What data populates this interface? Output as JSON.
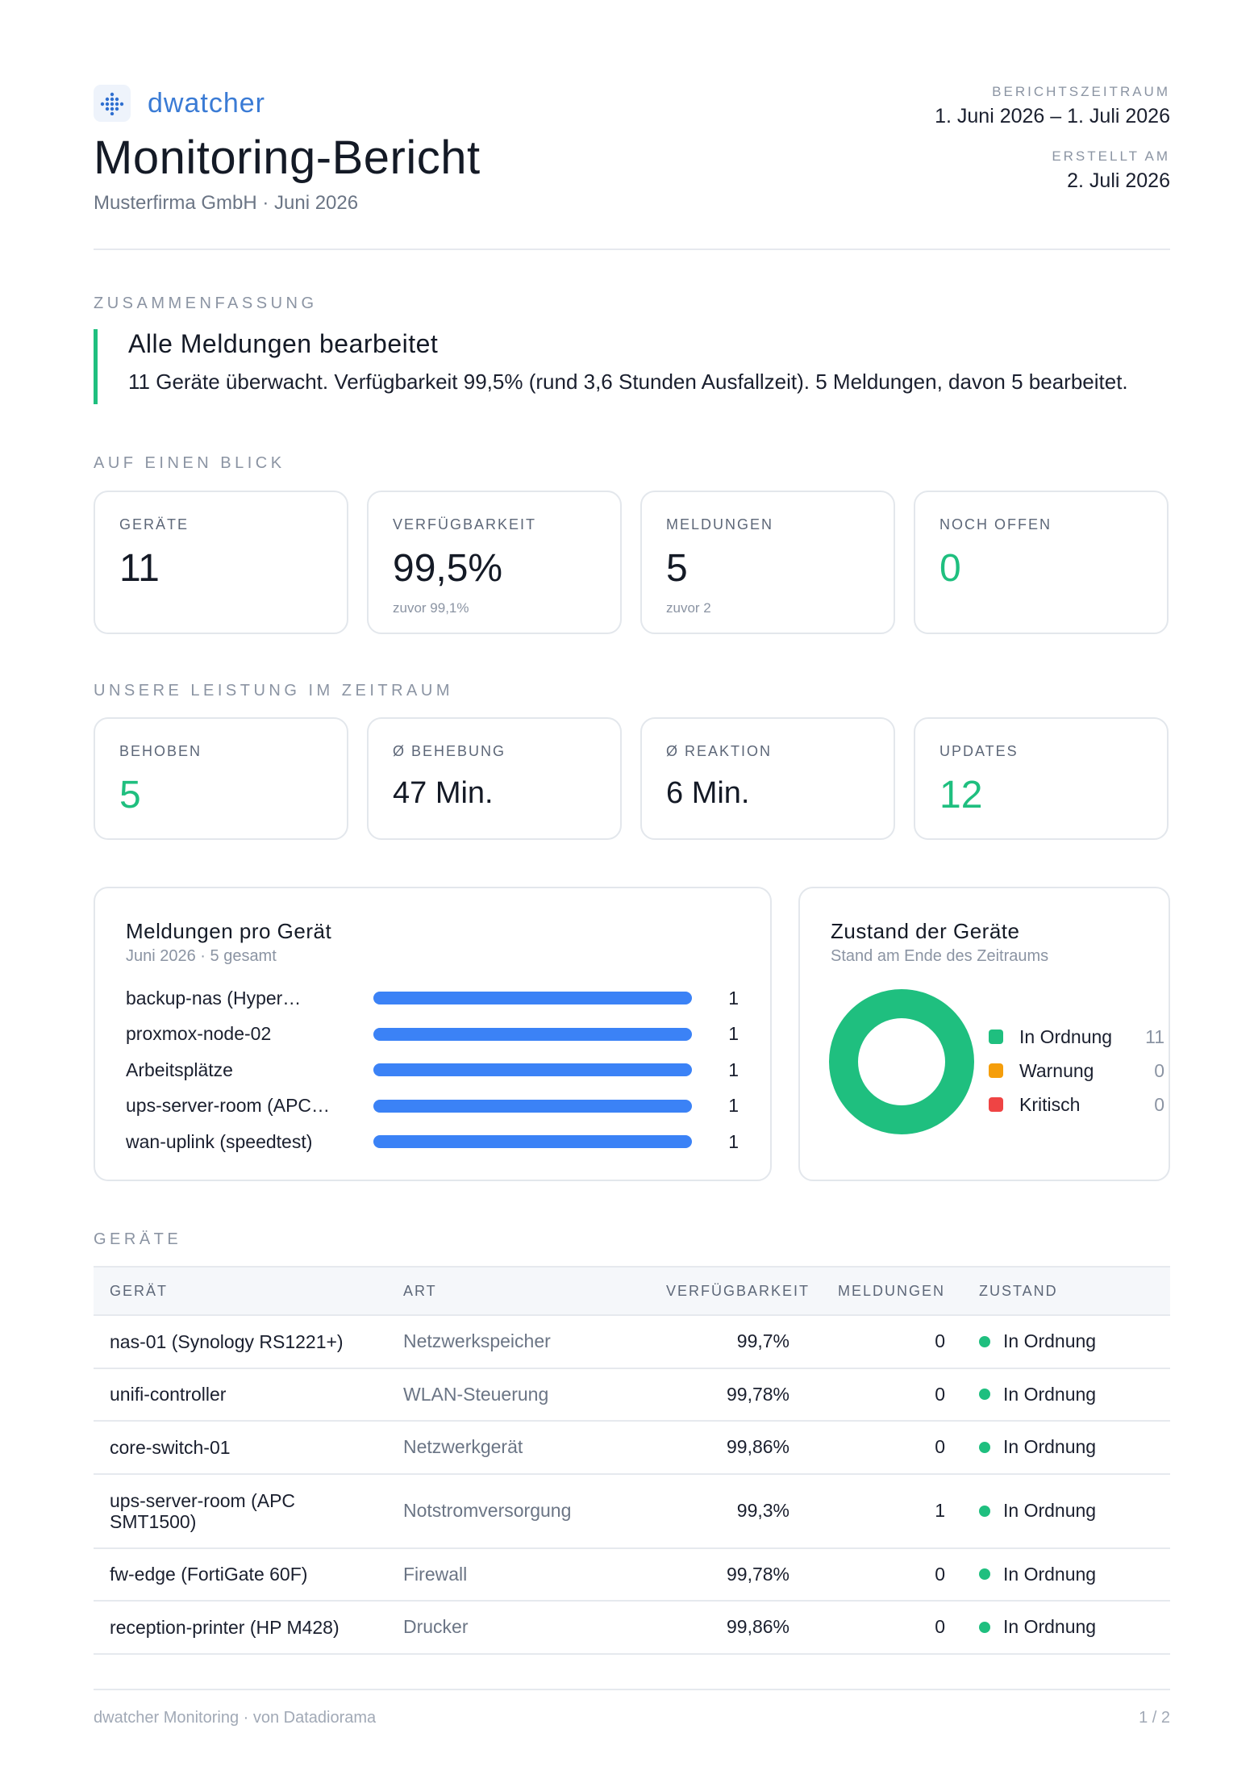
{
  "brand": {
    "name": "dwatcher",
    "icon": "dots-grid-icon"
  },
  "title": "Monitoring-Bericht",
  "subtitle": "Musterfirma GmbH · Juni 2026",
  "meta": {
    "period_label": "BERICHTSZEITRAUM",
    "period_value": "1. Juni 2026 – 1. Juli 2026",
    "created_label": "ERSTELLT AM",
    "created_value": "2. Juli 2026"
  },
  "summary": {
    "section_label": "ZUSAMMENFASSUNG",
    "title": "Alle Meldungen bearbeitet",
    "text": "11 Geräte überwacht. Verfügbarkeit 99,5% (rund 3,6 Stunden Ausfallzeit). 5 Meldungen, davon 5 bearbeitet.",
    "accent": "#1fbf7f"
  },
  "glance": {
    "section_label": "AUF EINEN BLICK",
    "cards": [
      {
        "label": "GERÄTE",
        "value": "11",
        "note": ""
      },
      {
        "label": "VERFÜGBARKEIT",
        "value": "99,5%",
        "note": "zuvor 99,1%"
      },
      {
        "label": "MELDUNGEN",
        "value": "5",
        "note": "zuvor 2"
      },
      {
        "label": "NOCH OFFEN",
        "value": "0",
        "note": ""
      }
    ]
  },
  "performance": {
    "section_label": "UNSERE LEISTUNG IM ZEITRAUM",
    "cards": [
      {
        "label": "BEHOBEN",
        "value": "5"
      },
      {
        "label": "Ø BEHEBUNG",
        "value": "47 Min."
      },
      {
        "label": "Ø REAKTION",
        "value": "6 Min."
      },
      {
        "label": "UPDATES",
        "value": "12"
      }
    ]
  },
  "alerts_chart": {
    "title": "Meldungen pro Gerät",
    "subtitle": "Juni 2026 · 5 gesamt"
  },
  "status_chart": {
    "title": "Zustand der Geräte",
    "subtitle": "Stand am Ende des Zeitraums"
  },
  "chart_data": [
    {
      "type": "bar",
      "orientation": "horizontal",
      "title": "Meldungen pro Gerät",
      "categories": [
        "backup-nas (Hyper…",
        "proxmox-node-02",
        "Arbeitsplätze",
        "ups-server-room (APC…",
        "wan-uplink (speedtest)"
      ],
      "values": [
        1,
        1,
        1,
        1,
        1
      ],
      "xlim": [
        0,
        1
      ],
      "color": "#3b82f6"
    },
    {
      "type": "pie",
      "variant": "donut",
      "title": "Zustand der Geräte",
      "labels": [
        "In Ordnung",
        "Warnung",
        "Kritisch"
      ],
      "values": [
        11,
        0,
        0
      ],
      "colors": [
        "#1fbf7f",
        "#f59e0b",
        "#ef4444"
      ],
      "legend": "right"
    }
  ],
  "devices": {
    "section_label": "GERÄTE",
    "columns": [
      "GERÄT",
      "ART",
      "VERFÜGBARKEIT",
      "MELDUNGEN",
      "ZUSTAND"
    ],
    "rows": [
      {
        "name": "nas-01 (Synology RS1221+)",
        "type": "Netzwerkspeicher",
        "availability": "99,7%",
        "alerts": "0",
        "status": "In Ordnung"
      },
      {
        "name": "unifi-controller",
        "type": "WLAN-Steuerung",
        "availability": "99,78%",
        "alerts": "0",
        "status": "In Ordnung"
      },
      {
        "name": "core-switch-01",
        "type": "Netzwerkgerät",
        "availability": "99,86%",
        "alerts": "0",
        "status": "In Ordnung"
      },
      {
        "name": "ups-server-room (APC SMT1500)",
        "type": "Notstromversorgung",
        "availability": "99,3%",
        "alerts": "1",
        "status": "In Ordnung"
      },
      {
        "name": "fw-edge (FortiGate 60F)",
        "type": "Firewall",
        "availability": "99,78%",
        "alerts": "0",
        "status": "In Ordnung"
      },
      {
        "name": "reception-printer (HP M428)",
        "type": "Drucker",
        "availability": "99,86%",
        "alerts": "0",
        "status": "In Ordnung"
      }
    ]
  },
  "footer": {
    "left": "dwatcher Monitoring · von Datadiorama",
    "right": "1 / 2"
  }
}
